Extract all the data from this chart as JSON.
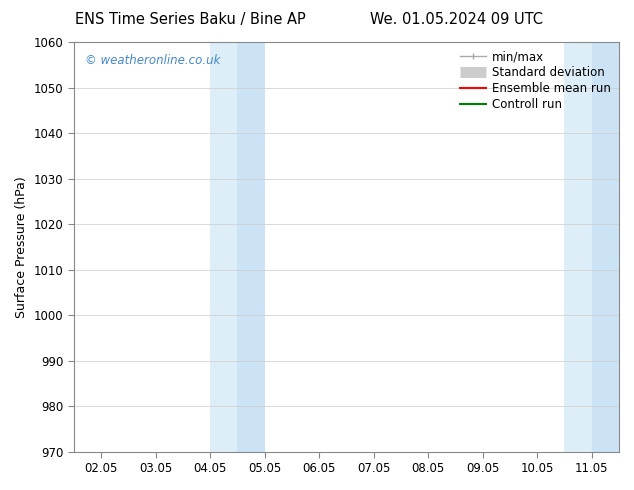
{
  "title_left": "ENS Time Series Baku / Bine AP",
  "title_right": "We. 01.05.2024 09 UTC",
  "ylabel": "Surface Pressure (hPa)",
  "ylim": [
    970,
    1060
  ],
  "yticks": [
    970,
    980,
    990,
    1000,
    1010,
    1020,
    1030,
    1040,
    1050,
    1060
  ],
  "xtick_labels": [
    "02.05",
    "03.05",
    "04.05",
    "05.05",
    "06.05",
    "07.05",
    "08.05",
    "09.05",
    "10.05",
    "11.05"
  ],
  "xtick_positions": [
    0,
    1,
    2,
    3,
    4,
    5,
    6,
    7,
    8,
    9
  ],
  "xlim": [
    -0.5,
    9.5
  ],
  "shaded_regions": [
    {
      "xmin": 2,
      "xmax": 2.5,
      "color": "#ddeef8"
    },
    {
      "xmin": 2.5,
      "xmax": 3,
      "color": "#cce3f5"
    },
    {
      "xmin": 8.5,
      "xmax": 9.0,
      "color": "#ddeef8"
    },
    {
      "xmin": 9.0,
      "xmax": 9.5,
      "color": "#cce3f5"
    }
  ],
  "watermark_text": "© weatheronline.co.uk",
  "watermark_color": "#4488cc",
  "legend_entries": [
    {
      "label": "min/max",
      "color": "#aaaaaa",
      "lw": 1.0,
      "ls": "-",
      "type": "minmax"
    },
    {
      "label": "Standard deviation",
      "color": "#cccccc",
      "lw": 8,
      "ls": "-",
      "type": "band"
    },
    {
      "label": "Ensemble mean run",
      "color": "red",
      "lw": 1.5,
      "ls": "-",
      "type": "line"
    },
    {
      "label": "Controll run",
      "color": "green",
      "lw": 1.5,
      "ls": "-",
      "type": "line"
    }
  ],
  "bg_color": "#ffffff",
  "plot_bg_color": "#ffffff",
  "title_fontsize": 10.5,
  "axis_label_fontsize": 9,
  "tick_fontsize": 8.5,
  "legend_fontsize": 8.5
}
